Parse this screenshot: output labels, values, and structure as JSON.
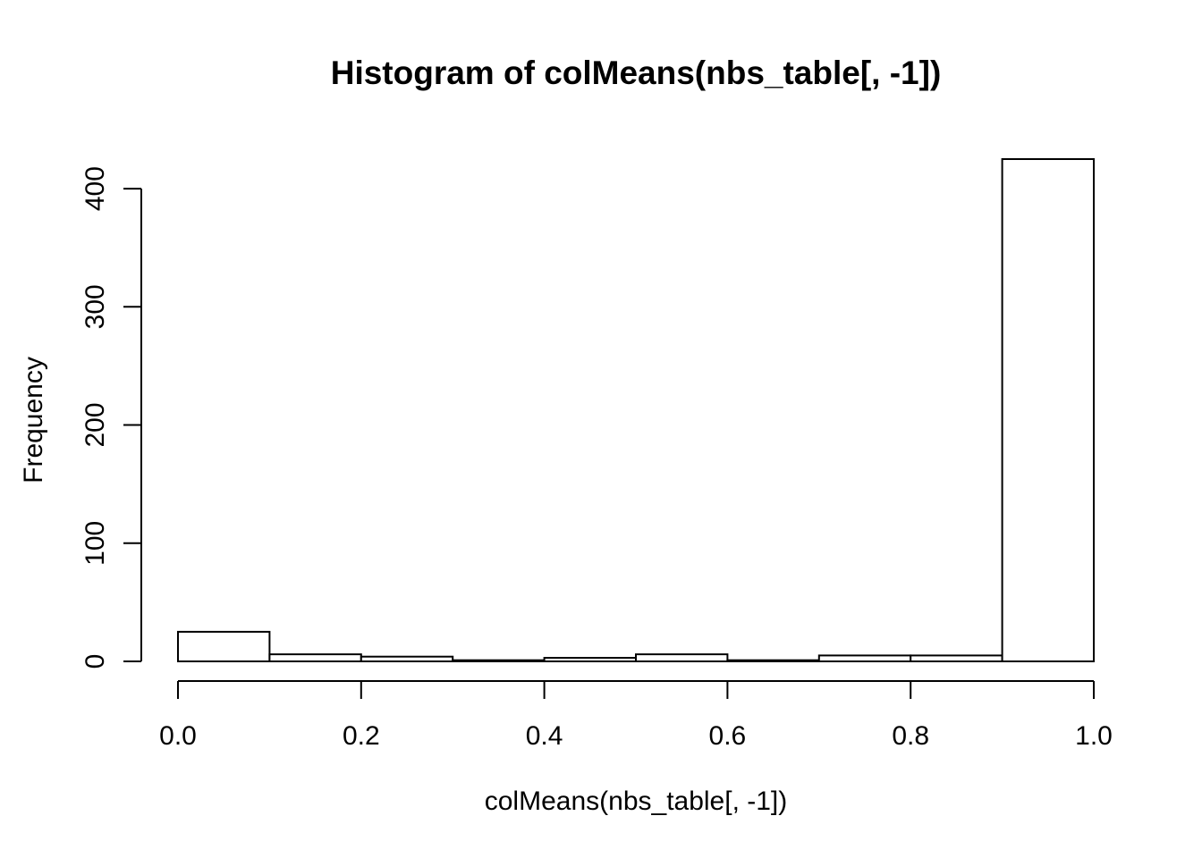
{
  "chart_data": {
    "type": "bar",
    "subtype": "histogram",
    "title": "Histogram of colMeans(nbs_table[, -1])",
    "xlabel": "colMeans(nbs_table[, -1])",
    "ylabel": "Frequency",
    "bin_edges": [
      0.0,
      0.1,
      0.2,
      0.3,
      0.4,
      0.5,
      0.6,
      0.7,
      0.8,
      0.9,
      1.0
    ],
    "counts": [
      25,
      6,
      4,
      1,
      3,
      6,
      1,
      5,
      5,
      425
    ],
    "xlim": [
      0.0,
      1.0
    ],
    "ylim": [
      0,
      425
    ],
    "x_ticks": [
      {
        "value": 0.0,
        "label": "0.0"
      },
      {
        "value": 0.2,
        "label": "0.2"
      },
      {
        "value": 0.4,
        "label": "0.4"
      },
      {
        "value": 0.6,
        "label": "0.6"
      },
      {
        "value": 0.8,
        "label": "0.8"
      },
      {
        "value": 1.0,
        "label": "1.0"
      }
    ],
    "y_ticks": [
      {
        "value": 0,
        "label": "0"
      },
      {
        "value": 100,
        "label": "100"
      },
      {
        "value": 200,
        "label": "200"
      },
      {
        "value": 300,
        "label": "300"
      },
      {
        "value": 400,
        "label": "400"
      }
    ],
    "grid": false,
    "legend": null,
    "colors": {
      "background": "#ffffff",
      "bar_fill": "#ffffff",
      "bar_border": "#000000",
      "axis": "#000000",
      "text": "#000000"
    }
  }
}
